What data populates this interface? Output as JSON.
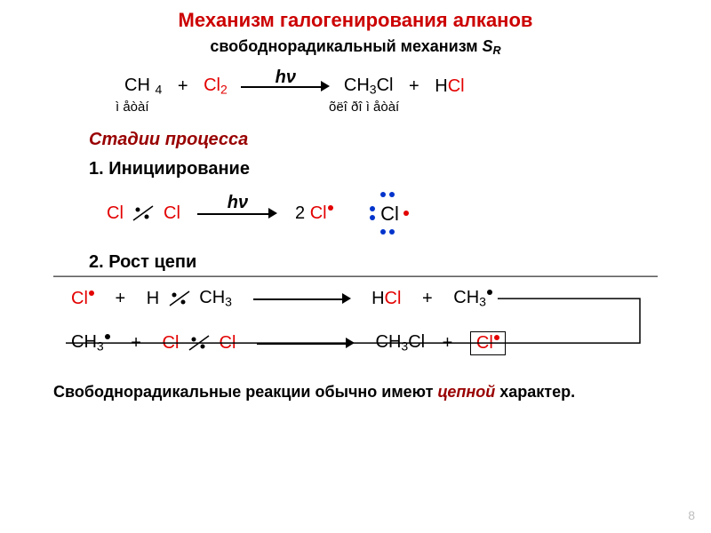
{
  "colors": {
    "title_red": "#cc0000",
    "red": "#e30000",
    "dark_red": "#990000",
    "black": "#000000",
    "blue": "#0033cc",
    "gray": "#bfbfbf"
  },
  "fonts": {
    "title_size": 22,
    "body_size": 18,
    "formula_size": 20,
    "label_size": 15
  },
  "title": "Механизм галогенирования алканов",
  "subtitle_prefix": "свободнорадикальный механизм ",
  "subtitle_mech": "S",
  "subtitle_mech_sub": "R",
  "reaction1": {
    "lhs1_c": "CH",
    "lhs1_sub": "4",
    "plus": "+",
    "cl2_c": "Cl",
    "cl2_sub": "2",
    "arrow_label": "hν",
    "rhs1_c": "CH",
    "rhs1_sub": "3",
    "rhs1_tail": "Cl",
    "rhs2_h": "H",
    "rhs2_cl": "Cl",
    "label_left": "ì åòàí",
    "label_right": "õëî ðî ì åòàí"
  },
  "stages_title": "Стадии процесса",
  "step1_title": "1.  Инициирование",
  "init": {
    "cl1": "Cl",
    "cl2": "Cl",
    "arrow_label": "hν",
    "coef": "2 ",
    "product": "Cl",
    "lewis_symbol": "Cl"
  },
  "step2_title": "2.  Рост цепи",
  "prop1": {
    "cl": "Cl",
    "h": "H",
    "ch3": "CH",
    "ch3_sub": "3",
    "hcl_h": "H",
    "hcl_cl": "Cl",
    "plus": "+",
    "ch3rad": "CH",
    "ch3rad_sub": "3"
  },
  "prop2": {
    "ch3rad": "CH",
    "ch3rad_sub": "3",
    "cl1": "Cl",
    "cl2": "Cl",
    "product_c": "CH",
    "product_sub": "3",
    "product_tail": "Cl",
    "plus": "+",
    "cl_rad": "Cl"
  },
  "bottom_prefix": "Свободнорадикальные реакции обычно имеют ",
  "bottom_em": "цепной",
  "bottom_suffix": " характер.",
  "page_num": "8"
}
